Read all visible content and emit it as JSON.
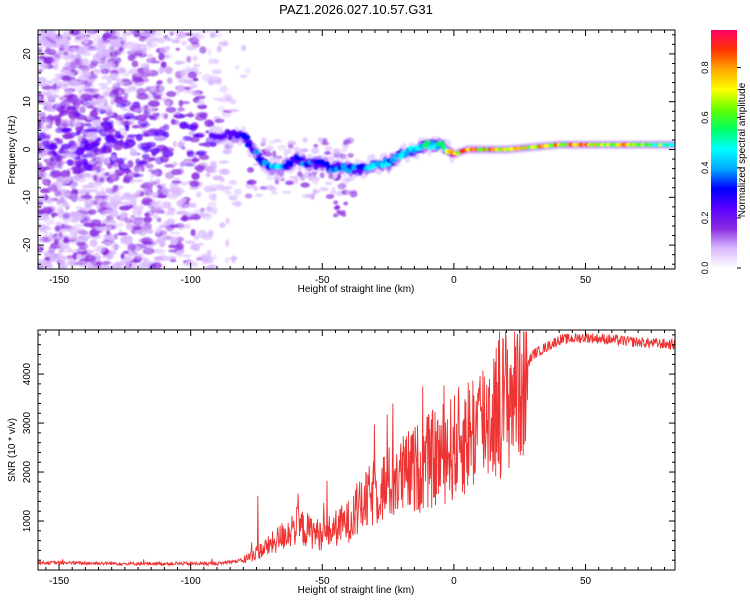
{
  "title": "PAZ1.2026.027.10.57.G31",
  "chart_data": [
    {
      "type": "heatmap",
      "xlabel": "Height of straight line (km)",
      "ylabel": "Frequency (Hz)",
      "xlim": [
        -158,
        84
      ],
      "ylim": [
        -25,
        25
      ],
      "xticks": [
        -150,
        -100,
        -50,
        0,
        50
      ],
      "xtick_labels": [
        "-150",
        "-100",
        "-50",
        "0",
        "50"
      ],
      "yticks": [
        -20,
        -10,
        0,
        10,
        20
      ],
      "ytick_labels": [
        "-20",
        "-10",
        "0",
        "10",
        "20"
      ],
      "colorbar": {
        "label": "Normalized spectral amplitude",
        "range": [
          0,
          0.95
        ],
        "ticks": [
          0.0,
          0.2,
          0.4,
          0.6,
          0.8
        ],
        "tick_labels": [
          "0.0",
          "0.2",
          "0.4",
          "0.6",
          "0.8"
        ],
        "colors": [
          "#ffffff",
          "#d9b8ff",
          "#8a2be2",
          "#5a00ff",
          "#0000ff",
          "#00aaff",
          "#00ffff",
          "#00ff60",
          "#66ff00",
          "#ffff00",
          "#ffaa00",
          "#ff3300",
          "#ff0066"
        ]
      },
      "ridge": {
        "x": [
          -90,
          -80,
          -75,
          -70,
          -65,
          -60,
          -55,
          -50,
          -45,
          -40,
          -35,
          -30,
          -25,
          -20,
          -15,
          -10,
          -5,
          0,
          5,
          10,
          20,
          30,
          40,
          50,
          60,
          70,
          84
        ],
        "y": [
          3,
          3,
          -1,
          -4,
          -4,
          -2,
          -3,
          -3,
          -4,
          -4,
          -4,
          -3,
          -3,
          -1,
          0,
          1,
          1,
          -1,
          0,
          0,
          0,
          0.5,
          1,
          1,
          1,
          1,
          1
        ],
        "amplitude": [
          0.2,
          0.3,
          0.35,
          0.4,
          0.42,
          0.3,
          0.35,
          0.33,
          0.38,
          0.42,
          0.4,
          0.45,
          0.4,
          0.45,
          0.5,
          0.55,
          0.5,
          0.85,
          0.8,
          0.9,
          0.85,
          0.75,
          0.8,
          0.85,
          0.8,
          0.7,
          0.6
        ]
      }
    },
    {
      "type": "line",
      "xlabel": "Height of straight line (km)",
      "ylabel": "SNR (10 * v/v)",
      "xlim": [
        -158,
        84
      ],
      "ylim": [
        0,
        4900
      ],
      "xticks": [
        -150,
        -100,
        -50,
        0,
        50
      ],
      "xtick_labels": [
        "-150",
        "-100",
        "-50",
        "0",
        "50"
      ],
      "yticks": [
        1000,
        2000,
        3000,
        4000
      ],
      "ytick_labels": [
        "1000",
        "2000",
        "3000",
        "4000"
      ],
      "color": "#ee3333",
      "trend": {
        "x": [
          -158,
          -120,
          -90,
          -80,
          -75,
          -70,
          -60,
          -50,
          -40,
          -30,
          -20,
          -10,
          0,
          10,
          20,
          25,
          30,
          40,
          50,
          60,
          70,
          84
        ],
        "y": [
          150,
          130,
          130,
          200,
          350,
          500,
          900,
          700,
          1000,
          1600,
          1900,
          2200,
          2500,
          3000,
          3500,
          3900,
          4400,
          4700,
          4750,
          4700,
          4650,
          4600
        ]
      }
    }
  ]
}
